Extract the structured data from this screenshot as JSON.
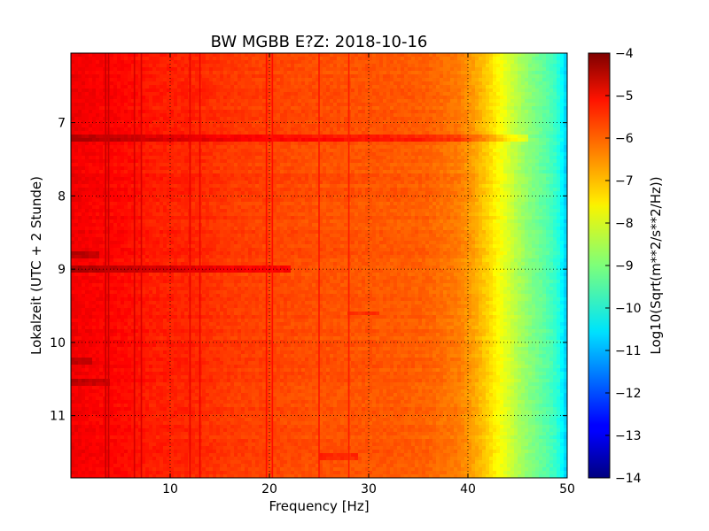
{
  "chart_data": {
    "type": "heatmap",
    "title": "BW MGBB E?Z: 2018-10-16",
    "xlabel": "Frequency [Hz]",
    "ylabel": "Lokalzeit (UTC + 2 Stunde)",
    "xlim": [
      0,
      50
    ],
    "ylim_local_hours": [
      11.85,
      6.05
    ],
    "x_ticks": [
      10,
      20,
      30,
      40,
      50
    ],
    "x_tick_labels": [
      "10",
      "20",
      "30",
      "40",
      "50"
    ],
    "y_ticks": [
      7,
      8,
      9,
      10,
      11
    ],
    "y_tick_labels": [
      "7",
      "8",
      "9",
      "10",
      "11"
    ],
    "y_axis_inverted": true,
    "grid": true,
    "colormap": "jet",
    "colorbar": {
      "label": "Log10(Sqrt(m**2/s**2/Hz))",
      "range": [
        -14,
        -4
      ],
      "ticks": [
        -4,
        -5,
        -6,
        -7,
        -8,
        -9,
        -10,
        -11,
        -12,
        -13,
        -14
      ],
      "tick_labels": [
        "−4",
        "−5",
        "−6",
        "−7",
        "−8",
        "−9",
        "−10",
        "−11",
        "−12",
        "−13",
        "−14"
      ]
    },
    "spectrum_profile": {
      "frequency_hz": [
        0,
        2,
        5,
        8,
        12,
        16,
        20,
        24,
        28,
        32,
        36,
        39,
        40.5,
        42,
        43.5,
        45,
        46.5,
        48,
        49,
        49.6,
        50
      ],
      "log10_amplitude": [
        -5.1,
        -5.2,
        -5.3,
        -5.5,
        -5.6,
        -5.8,
        -5.9,
        -6.0,
        -6.05,
        -6.1,
        -6.2,
        -6.45,
        -6.8,
        -7.3,
        -7.9,
        -8.5,
        -9.0,
        -9.4,
        -9.8,
        -10.4,
        -10.8
      ]
    },
    "vertical_lines_hz": [
      3.5,
      3.8,
      6.4,
      7.1,
      12.0,
      13.0,
      19.7,
      20.3,
      25.0,
      28.0
    ],
    "horizontal_bands": [
      {
        "time": 7.2,
        "freq_range": [
          0,
          46
        ],
        "delta": 0.6
      },
      {
        "time": 9.0,
        "freq_range": [
          0,
          22
        ],
        "delta": 0.7
      },
      {
        "time": 8.8,
        "freq_range": [
          0,
          3
        ],
        "delta": 0.5
      },
      {
        "time": 10.55,
        "freq_range": [
          0,
          4
        ],
        "delta": 0.5
      },
      {
        "time": 10.25,
        "freq_range": [
          0,
          2
        ],
        "delta": 0.5
      },
      {
        "time": 11.55,
        "freq_range": [
          25,
          29
        ],
        "delta": 0.4
      },
      {
        "time": 9.6,
        "freq_range": [
          28,
          31
        ],
        "delta": 0.4
      }
    ]
  }
}
